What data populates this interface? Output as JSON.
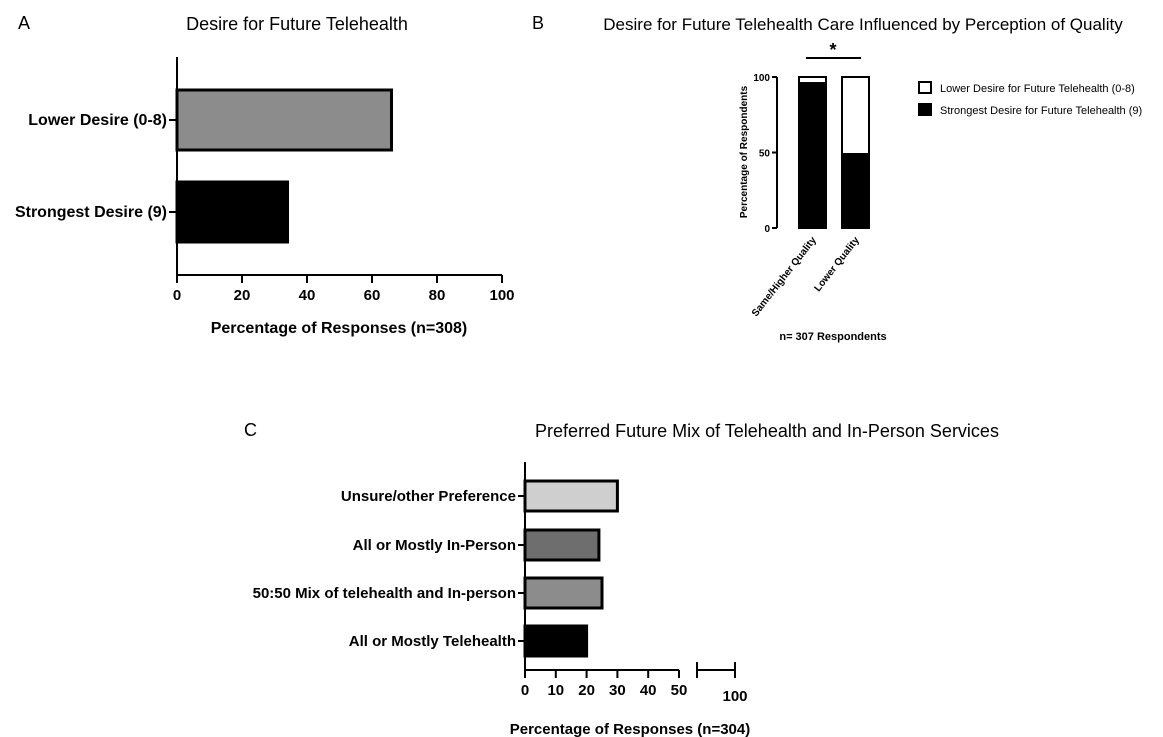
{
  "panels": {
    "a": {
      "letter": "A"
    },
    "b": {
      "letter": "B",
      "significance": "*",
      "note": "n= 307 Respondents"
    },
    "c": {
      "letter": "C"
    }
  },
  "chart_data": [
    {
      "type": "bar",
      "orientation": "horizontal",
      "title": "Desire for Future Telehealth",
      "categories": [
        "Lower Desire (0-8)",
        "Strongest Desire (9)"
      ],
      "values": [
        66,
        34
      ],
      "colors": [
        "#8c8c8c",
        "#000000"
      ],
      "xlabel": "Percentage of Responses (n=308)",
      "ylabel": "",
      "xlim": [
        0,
        100
      ],
      "xticks": [
        "0",
        "20",
        "40",
        "60",
        "80",
        "100"
      ],
      "grid": false
    },
    {
      "type": "bar",
      "stacked": true,
      "title": "Desire for Future Telehealth Care Influenced by Perception of Quality",
      "categories": [
        "Same/Higher Quality",
        "Lower Quality"
      ],
      "series": [
        {
          "name": "Strongest Desire for Future Telehealth (9)",
          "values": [
            96,
            49
          ],
          "color": "#000000"
        },
        {
          "name": "Lower Desire for Future Telehealth (0-8)",
          "values": [
            4,
            51
          ],
          "color": "#ffffff"
        }
      ],
      "xlabel": "",
      "ylabel": "Percentage of Respondents",
      "ylim": [
        0,
        100
      ],
      "yticks": [
        "0",
        "50",
        "100"
      ],
      "legend": "right",
      "legend_order": [
        "Lower Desire for Future Telehealth (0-8)",
        "Strongest Desire for Future Telehealth (9)"
      ],
      "grid": false
    },
    {
      "type": "bar",
      "orientation": "horizontal",
      "title": "Preferred Future Mix of Telehealth and In-Person Services",
      "categories": [
        "Unsure/other Preference",
        "All or Mostly In-Person",
        "50:50 Mix of telehealth and In-person",
        "All or Mostly Telehealth"
      ],
      "values": [
        30,
        24,
        25,
        20
      ],
      "colors": [
        "#cfcfcf",
        "#6e6e6e",
        "#8c8c8c",
        "#000000"
      ],
      "xlabel": "Percentage of Responses (n=304)",
      "ylabel": "",
      "xlim": [
        0,
        100
      ],
      "axis_break": [
        50,
        100
      ],
      "xticks": [
        "0",
        "10",
        "20",
        "30",
        "40",
        "50",
        "100"
      ],
      "grid": false
    }
  ]
}
